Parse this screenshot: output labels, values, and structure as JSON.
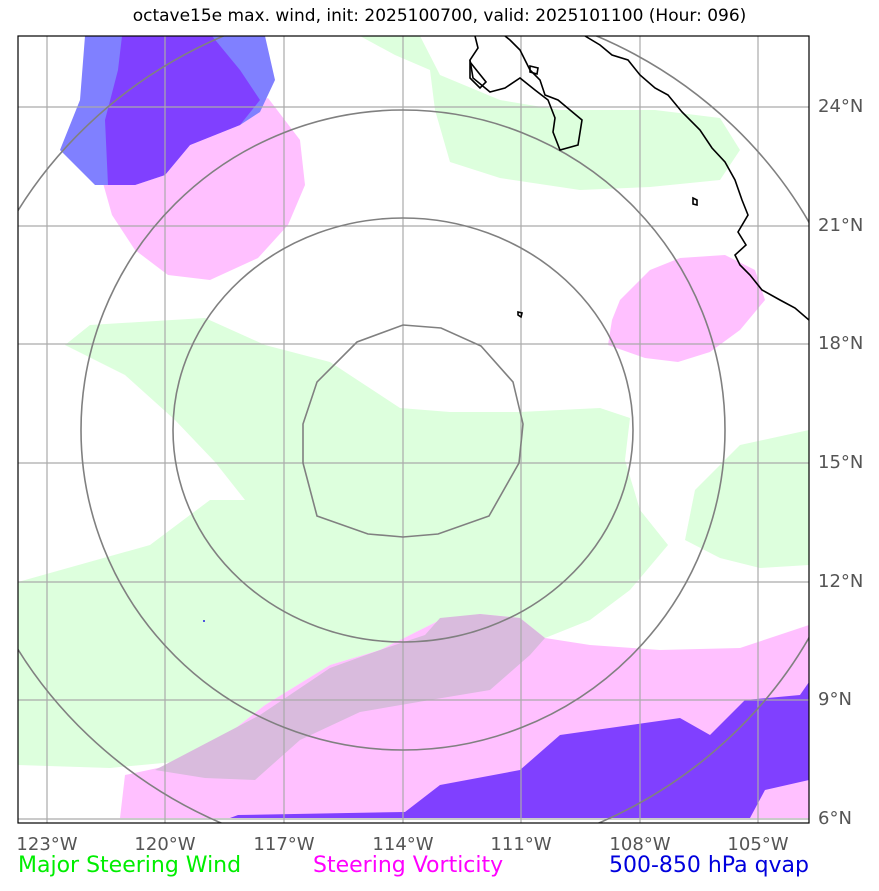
{
  "title": "octave15e max. wind, init: 2025100700, valid: 2025101100 (Hour: 096)",
  "lat_labels": [
    "24°N",
    "21°N",
    "18°N",
    "15°N",
    "12°N",
    "9°N",
    "6°N"
  ],
  "lon_labels": [
    "123°W",
    "120°W",
    "117°W",
    "114°W",
    "111°W",
    "108°W",
    "105°W"
  ],
  "legend": [
    {
      "label": "Major Steering Wind",
      "color": "#00ee00"
    },
    {
      "label": "Steering Vorticity",
      "color": "#ff00ff"
    },
    {
      "label": "500-850 hPa qvap",
      "color": "#0000dd"
    }
  ],
  "colors": {
    "steering_wind_fill": "#ddffdd",
    "vorticity_fill": "#ffc0ff",
    "qvap_light": "#8080ff",
    "qvap_dark": "#8040ff",
    "overlap_fill": "#d9bbdd",
    "range_rings": "#808080",
    "gridlines": "#aaaaaa",
    "coastline": "#000000"
  },
  "map_extent": {
    "lon_min": -123.7,
    "lon_max": -103.7,
    "lat_min": 5.9,
    "lat_max": 25.8
  },
  "storm_center": {
    "lon": -114.0,
    "lat": 16.0
  },
  "range_ring_count": 4
}
